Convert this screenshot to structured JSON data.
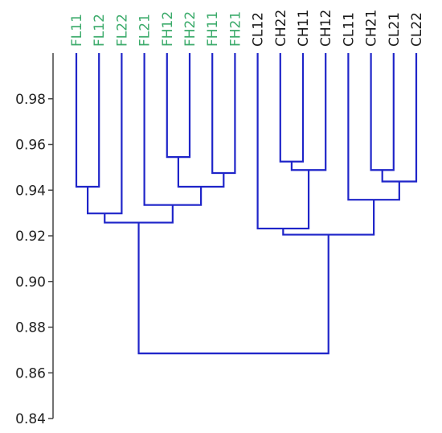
{
  "chart_data": {
    "type": "dendrogram",
    "orientation": "top-labels",
    "ylim": [
      0.84,
      1.0
    ],
    "yticks": [
      "0.84",
      "0.86",
      "0.88",
      "0.90",
      "0.92",
      "0.94",
      "0.96",
      "0.98"
    ],
    "ytick_values": [
      0.84,
      0.86,
      0.88,
      0.9,
      0.92,
      0.94,
      0.96,
      0.98
    ],
    "leaves": [
      {
        "label": "FL11",
        "group": "F"
      },
      {
        "label": "FL12",
        "group": "F"
      },
      {
        "label": "FL22",
        "group": "F"
      },
      {
        "label": "FL21",
        "group": "F"
      },
      {
        "label": "FH12",
        "group": "F"
      },
      {
        "label": "FH22",
        "group": "F"
      },
      {
        "label": "FH11",
        "group": "F"
      },
      {
        "label": "FH21",
        "group": "F"
      },
      {
        "label": "CL12",
        "group": "C"
      },
      {
        "label": "CH22",
        "group": "C"
      },
      {
        "label": "CH11",
        "group": "C"
      },
      {
        "label": "CH12",
        "group": "C"
      },
      {
        "label": "CL11",
        "group": "C"
      },
      {
        "label": "CH21",
        "group": "C"
      },
      {
        "label": "CL21",
        "group": "C"
      },
      {
        "label": "CL22",
        "group": "C"
      }
    ],
    "merges": [
      {
        "left": 0,
        "right": 1,
        "height": 0.9415
      },
      {
        "left": 16,
        "right": 2,
        "height": 0.9298
      },
      {
        "left": 4,
        "right": 5,
        "height": 0.9545
      },
      {
        "left": 6,
        "right": 7,
        "height": 0.9475
      },
      {
        "left": 18,
        "right": 19,
        "height": 0.9415
      },
      {
        "left": 3,
        "right": 20,
        "height": 0.9335
      },
      {
        "left": 17,
        "right": 21,
        "height": 0.9258
      },
      {
        "left": 9,
        "right": 10,
        "height": 0.9525
      },
      {
        "left": 23,
        "right": 11,
        "height": 0.9488
      },
      {
        "left": 8,
        "right": 24,
        "height": 0.9232
      },
      {
        "left": 13,
        "right": 14,
        "height": 0.9488
      },
      {
        "left": 26,
        "right": 15,
        "height": 0.9438
      },
      {
        "left": 12,
        "right": 27,
        "height": 0.9358
      },
      {
        "left": 25,
        "right": 28,
        "height": 0.9205
      },
      {
        "left": 22,
        "right": 29,
        "height": 0.8685
      }
    ],
    "colors": {
      "tree": "#1f25c9",
      "group_F": "#3cab6b",
      "group_C": "#1a1a1a",
      "axis": "#444444"
    }
  }
}
